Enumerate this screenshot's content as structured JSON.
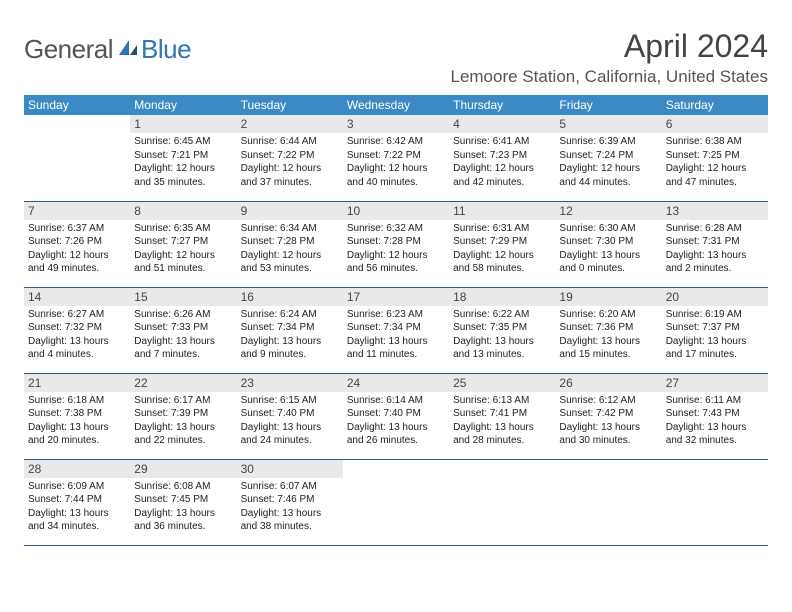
{
  "logo": {
    "general": "General",
    "blue": "Blue"
  },
  "title": "April 2024",
  "location": "Lemoore Station, California, United States",
  "colors": {
    "header_bg": "#3b8ac4",
    "header_text": "#ffffff",
    "daynum_bg": "#e9e9e9",
    "border": "#2e5c8a",
    "logo_blue": "#2e75b6"
  },
  "weekdays": [
    "Sunday",
    "Monday",
    "Tuesday",
    "Wednesday",
    "Thursday",
    "Friday",
    "Saturday"
  ],
  "weeks": [
    [
      null,
      {
        "n": "1",
        "sr": "Sunrise: 6:45 AM",
        "ss": "Sunset: 7:21 PM",
        "dl1": "Daylight: 12 hours",
        "dl2": "and 35 minutes."
      },
      {
        "n": "2",
        "sr": "Sunrise: 6:44 AM",
        "ss": "Sunset: 7:22 PM",
        "dl1": "Daylight: 12 hours",
        "dl2": "and 37 minutes."
      },
      {
        "n": "3",
        "sr": "Sunrise: 6:42 AM",
        "ss": "Sunset: 7:22 PM",
        "dl1": "Daylight: 12 hours",
        "dl2": "and 40 minutes."
      },
      {
        "n": "4",
        "sr": "Sunrise: 6:41 AM",
        "ss": "Sunset: 7:23 PM",
        "dl1": "Daylight: 12 hours",
        "dl2": "and 42 minutes."
      },
      {
        "n": "5",
        "sr": "Sunrise: 6:39 AM",
        "ss": "Sunset: 7:24 PM",
        "dl1": "Daylight: 12 hours",
        "dl2": "and 44 minutes."
      },
      {
        "n": "6",
        "sr": "Sunrise: 6:38 AM",
        "ss": "Sunset: 7:25 PM",
        "dl1": "Daylight: 12 hours",
        "dl2": "and 47 minutes."
      }
    ],
    [
      {
        "n": "7",
        "sr": "Sunrise: 6:37 AM",
        "ss": "Sunset: 7:26 PM",
        "dl1": "Daylight: 12 hours",
        "dl2": "and 49 minutes."
      },
      {
        "n": "8",
        "sr": "Sunrise: 6:35 AM",
        "ss": "Sunset: 7:27 PM",
        "dl1": "Daylight: 12 hours",
        "dl2": "and 51 minutes."
      },
      {
        "n": "9",
        "sr": "Sunrise: 6:34 AM",
        "ss": "Sunset: 7:28 PM",
        "dl1": "Daylight: 12 hours",
        "dl2": "and 53 minutes."
      },
      {
        "n": "10",
        "sr": "Sunrise: 6:32 AM",
        "ss": "Sunset: 7:28 PM",
        "dl1": "Daylight: 12 hours",
        "dl2": "and 56 minutes."
      },
      {
        "n": "11",
        "sr": "Sunrise: 6:31 AM",
        "ss": "Sunset: 7:29 PM",
        "dl1": "Daylight: 12 hours",
        "dl2": "and 58 minutes."
      },
      {
        "n": "12",
        "sr": "Sunrise: 6:30 AM",
        "ss": "Sunset: 7:30 PM",
        "dl1": "Daylight: 13 hours",
        "dl2": "and 0 minutes."
      },
      {
        "n": "13",
        "sr": "Sunrise: 6:28 AM",
        "ss": "Sunset: 7:31 PM",
        "dl1": "Daylight: 13 hours",
        "dl2": "and 2 minutes."
      }
    ],
    [
      {
        "n": "14",
        "sr": "Sunrise: 6:27 AM",
        "ss": "Sunset: 7:32 PM",
        "dl1": "Daylight: 13 hours",
        "dl2": "and 4 minutes."
      },
      {
        "n": "15",
        "sr": "Sunrise: 6:26 AM",
        "ss": "Sunset: 7:33 PM",
        "dl1": "Daylight: 13 hours",
        "dl2": "and 7 minutes."
      },
      {
        "n": "16",
        "sr": "Sunrise: 6:24 AM",
        "ss": "Sunset: 7:34 PM",
        "dl1": "Daylight: 13 hours",
        "dl2": "and 9 minutes."
      },
      {
        "n": "17",
        "sr": "Sunrise: 6:23 AM",
        "ss": "Sunset: 7:34 PM",
        "dl1": "Daylight: 13 hours",
        "dl2": "and 11 minutes."
      },
      {
        "n": "18",
        "sr": "Sunrise: 6:22 AM",
        "ss": "Sunset: 7:35 PM",
        "dl1": "Daylight: 13 hours",
        "dl2": "and 13 minutes."
      },
      {
        "n": "19",
        "sr": "Sunrise: 6:20 AM",
        "ss": "Sunset: 7:36 PM",
        "dl1": "Daylight: 13 hours",
        "dl2": "and 15 minutes."
      },
      {
        "n": "20",
        "sr": "Sunrise: 6:19 AM",
        "ss": "Sunset: 7:37 PM",
        "dl1": "Daylight: 13 hours",
        "dl2": "and 17 minutes."
      }
    ],
    [
      {
        "n": "21",
        "sr": "Sunrise: 6:18 AM",
        "ss": "Sunset: 7:38 PM",
        "dl1": "Daylight: 13 hours",
        "dl2": "and 20 minutes."
      },
      {
        "n": "22",
        "sr": "Sunrise: 6:17 AM",
        "ss": "Sunset: 7:39 PM",
        "dl1": "Daylight: 13 hours",
        "dl2": "and 22 minutes."
      },
      {
        "n": "23",
        "sr": "Sunrise: 6:15 AM",
        "ss": "Sunset: 7:40 PM",
        "dl1": "Daylight: 13 hours",
        "dl2": "and 24 minutes."
      },
      {
        "n": "24",
        "sr": "Sunrise: 6:14 AM",
        "ss": "Sunset: 7:40 PM",
        "dl1": "Daylight: 13 hours",
        "dl2": "and 26 minutes."
      },
      {
        "n": "25",
        "sr": "Sunrise: 6:13 AM",
        "ss": "Sunset: 7:41 PM",
        "dl1": "Daylight: 13 hours",
        "dl2": "and 28 minutes."
      },
      {
        "n": "26",
        "sr": "Sunrise: 6:12 AM",
        "ss": "Sunset: 7:42 PM",
        "dl1": "Daylight: 13 hours",
        "dl2": "and 30 minutes."
      },
      {
        "n": "27",
        "sr": "Sunrise: 6:11 AM",
        "ss": "Sunset: 7:43 PM",
        "dl1": "Daylight: 13 hours",
        "dl2": "and 32 minutes."
      }
    ],
    [
      {
        "n": "28",
        "sr": "Sunrise: 6:09 AM",
        "ss": "Sunset: 7:44 PM",
        "dl1": "Daylight: 13 hours",
        "dl2": "and 34 minutes."
      },
      {
        "n": "29",
        "sr": "Sunrise: 6:08 AM",
        "ss": "Sunset: 7:45 PM",
        "dl1": "Daylight: 13 hours",
        "dl2": "and 36 minutes."
      },
      {
        "n": "30",
        "sr": "Sunrise: 6:07 AM",
        "ss": "Sunset: 7:46 PM",
        "dl1": "Daylight: 13 hours",
        "dl2": "and 38 minutes."
      },
      null,
      null,
      null,
      null
    ]
  ]
}
